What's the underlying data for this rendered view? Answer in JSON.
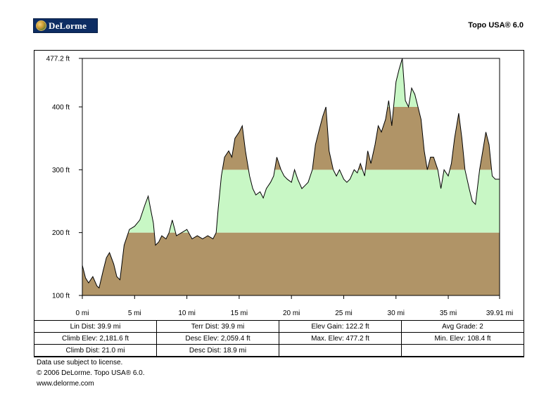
{
  "header": {
    "logo_text": "DeLorme",
    "product": "Topo USA® 6.0"
  },
  "colors": {
    "band_brown": "#b09467",
    "band_green": "#c8f7c5",
    "profile_line": "#000000"
  },
  "chart_data": {
    "type": "area",
    "title": "",
    "xlabel": "",
    "ylabel": "",
    "x_unit": "mi",
    "y_unit": "ft",
    "xlim": [
      0,
      39.91
    ],
    "ylim": [
      100,
      477.2
    ],
    "x_ticks": [
      "0 mi",
      "5 mi",
      "10 mi",
      "15 mi",
      "20 mi",
      "25 mi",
      "30 mi",
      "35 mi",
      "39.91 mi"
    ],
    "x_tick_values": [
      0,
      5,
      10,
      15,
      20,
      25,
      30,
      35,
      39.91
    ],
    "y_ticks": [
      "100 ft",
      "200 ft",
      "300 ft",
      "400 ft",
      "477.2 ft"
    ],
    "y_tick_values": [
      100,
      200,
      300,
      400,
      477.2
    ],
    "bands": [
      {
        "from": 100,
        "to": 200,
        "color": "#b09467"
      },
      {
        "from": 200,
        "to": 300,
        "color": "#c8f7c5"
      },
      {
        "from": 300,
        "to": 400,
        "color": "#b09467"
      },
      {
        "from": 400,
        "to": 477.2,
        "color": "#c8f7c5"
      }
    ],
    "series": [
      {
        "x": [
          0,
          0.3,
          0.6,
          1.0,
          1.4,
          1.6,
          2.0,
          2.3,
          2.6,
          3.0,
          3.3,
          3.6,
          4.0,
          4.5,
          5.0,
          5.5,
          5.8,
          6.0,
          6.3,
          6.5,
          6.8,
          7.0,
          7.3,
          7.6,
          8.0,
          8.3,
          8.6,
          9.0,
          9.5,
          10.0,
          10.5,
          11.0,
          11.5,
          12.0,
          12.5,
          12.8,
          13.0,
          13.3,
          13.6,
          14.0,
          14.3,
          14.6,
          15.0,
          15.3,
          15.6,
          16.0,
          16.3,
          16.6,
          17.0,
          17.3,
          17.6,
          18.0,
          18.3,
          18.6,
          19.0,
          19.3,
          19.6,
          20.0,
          20.3,
          20.6,
          21.0,
          21.3,
          21.6,
          22.0,
          22.3,
          22.6,
          23.0,
          23.3,
          23.6,
          24.0,
          24.3,
          24.6,
          25.0,
          25.3,
          25.6,
          26.0,
          26.3,
          26.6,
          27.0,
          27.3,
          27.6,
          28.0,
          28.3,
          28.6,
          29.0,
          29.3,
          29.6,
          30.0,
          30.3,
          30.6,
          30.9,
          31.2,
          31.5,
          31.8,
          32.1,
          32.4,
          32.7,
          33.0,
          33.3,
          33.6,
          34.0,
          34.3,
          34.6,
          35.0,
          35.3,
          35.6,
          36.0,
          36.3,
          36.6,
          37.0,
          37.3,
          37.6,
          38.0,
          38.3,
          38.6,
          38.9,
          39.2,
          39.5,
          39.91
        ],
        "y": [
          148,
          128,
          120,
          130,
          115,
          112,
          140,
          160,
          168,
          150,
          130,
          125,
          180,
          205,
          210,
          220,
          235,
          245,
          258,
          240,
          215,
          180,
          185,
          195,
          190,
          200,
          220,
          195,
          200,
          205,
          190,
          195,
          190,
          195,
          190,
          200,
          240,
          290,
          320,
          330,
          320,
          350,
          360,
          370,
          330,
          290,
          270,
          260,
          265,
          255,
          270,
          280,
          290,
          320,
          300,
          290,
          285,
          280,
          300,
          285,
          270,
          275,
          280,
          300,
          340,
          360,
          385,
          400,
          330,
          300,
          290,
          300,
          285,
          280,
          285,
          300,
          295,
          310,
          290,
          330,
          310,
          340,
          370,
          360,
          380,
          410,
          370,
          440,
          460,
          477,
          410,
          400,
          430,
          420,
          400,
          380,
          330,
          300,
          320,
          320,
          300,
          270,
          300,
          290,
          310,
          350,
          390,
          350,
          300,
          270,
          250,
          245,
          300,
          330,
          360,
          340,
          290,
          285,
          285
        ]
      }
    ]
  },
  "stats": [
    [
      "Lin Dist: 39.9 mi",
      "Terr Dist: 39.9 mi",
      "Elev Gain: 122.2 ft",
      "Avg Grade: 2"
    ],
    [
      "Climb Elev: 2,181.6 ft",
      "Desc Elev: 2,059.4 ft",
      "Max. Elev: 477.2 ft",
      "Min. Elev: 108.4 ft"
    ],
    [
      "Climb Dist: 21.0 mi",
      "Desc Dist: 18.9 mi",
      "",
      ""
    ]
  ],
  "footer": {
    "line1": "Data use subject to license.",
    "line2": "© 2006 DeLorme. Topo USA® 6.0.",
    "line3": "www.delorme.com"
  }
}
